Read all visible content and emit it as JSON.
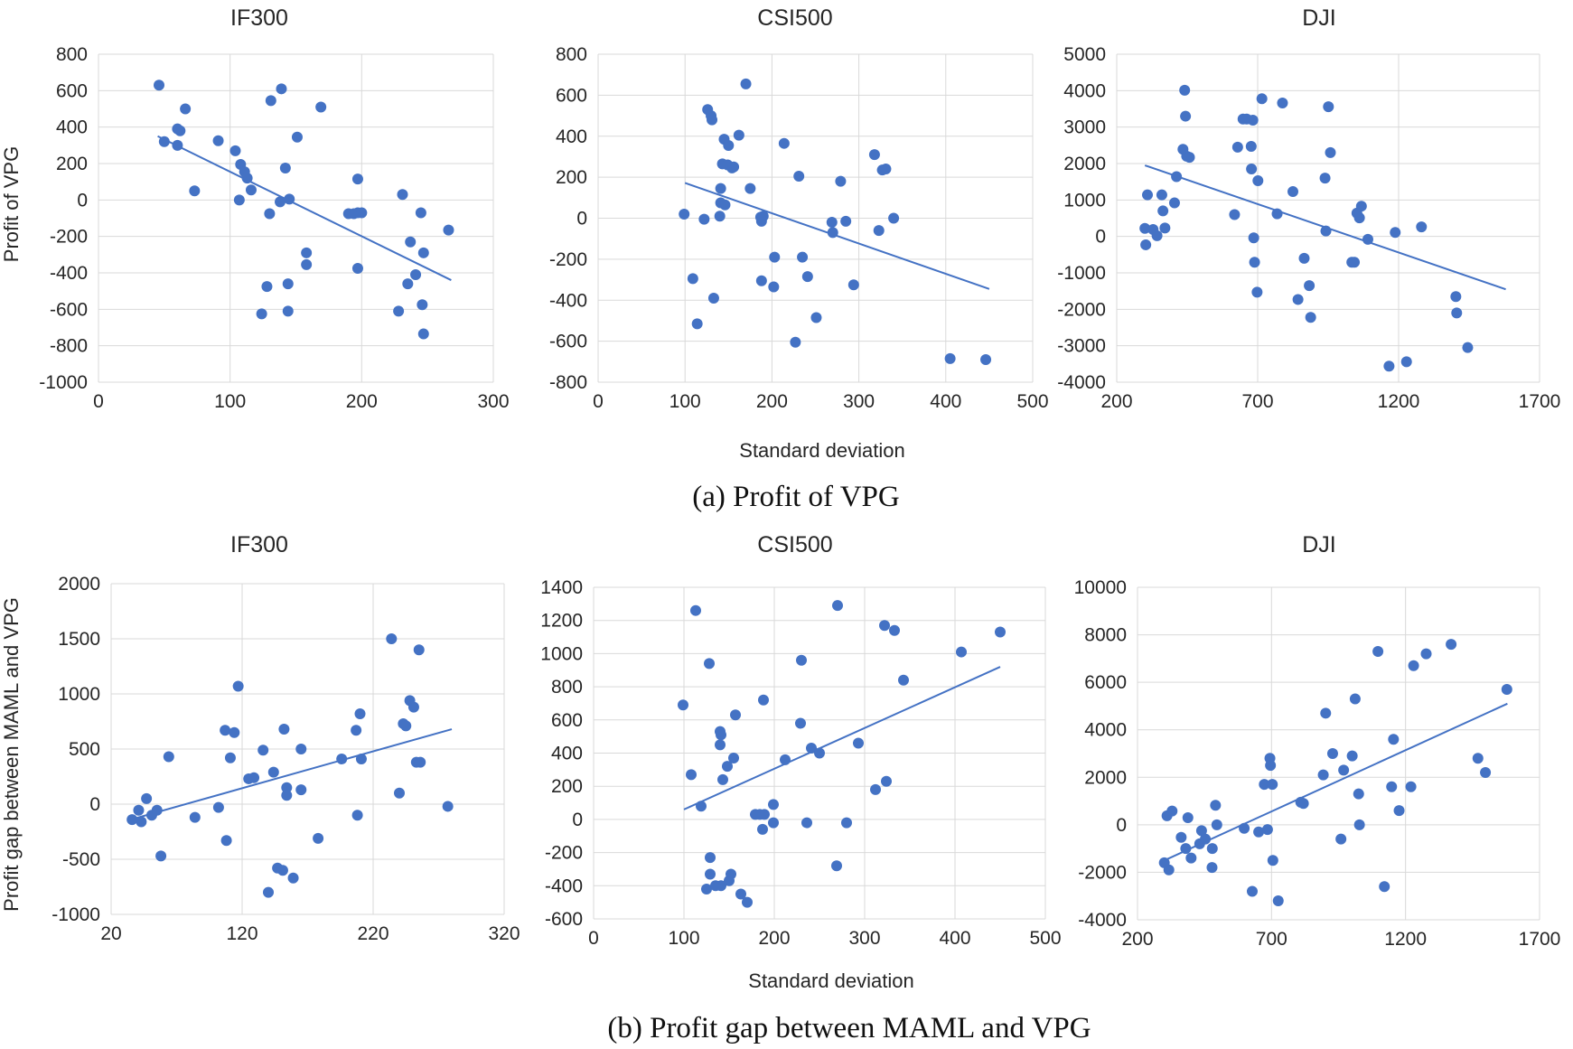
{
  "figure": {
    "caption_a": "(a) Profit of VPG",
    "caption_b": "(b) Profit gap between MAML and VPG",
    "xlabel_a": "Standard deviation",
    "xlabel_b": "Standard deviation",
    "ylabel_a": "Profit of VPG",
    "ylabel_b": "Profit gap between MAML and VPG"
  },
  "style": {
    "accent": "#4472c4",
    "grid": "#d9d9d9"
  },
  "chart_data": [
    {
      "id": "a1",
      "type": "scatter",
      "title": "IF300",
      "xlabel": "",
      "ylabel": "Profit of VPG",
      "xlim": [
        0,
        300
      ],
      "ylim": [
        -1000,
        800
      ],
      "xticks": [
        0,
        100,
        200,
        300
      ],
      "yticks": [
        -1000,
        -800,
        -600,
        -400,
        -200,
        0,
        200,
        400,
        600,
        800
      ],
      "trendline": {
        "type": "linear",
        "x": [
          45,
          268
        ],
        "y": [
          350,
          -440
        ]
      },
      "points": [
        [
          46,
          630
        ],
        [
          50,
          320
        ],
        [
          60,
          390
        ],
        [
          62,
          380
        ],
        [
          60,
          300
        ],
        [
          66,
          500
        ],
        [
          73,
          50
        ],
        [
          91,
          325
        ],
        [
          104,
          270
        ],
        [
          107,
          0
        ],
        [
          108,
          195
        ],
        [
          111,
          155
        ],
        [
          113,
          120
        ],
        [
          116,
          55
        ],
        [
          128,
          -475
        ],
        [
          124,
          -625
        ],
        [
          130,
          -75
        ],
        [
          131,
          545
        ],
        [
          138,
          -10
        ],
        [
          139,
          610
        ],
        [
          142,
          175
        ],
        [
          144,
          -610
        ],
        [
          144,
          -460
        ],
        [
          145,
          5
        ],
        [
          151,
          345
        ],
        [
          158,
          -290
        ],
        [
          158,
          -355
        ],
        [
          169,
          510
        ],
        [
          190,
          -75
        ],
        [
          194,
          -75
        ],
        [
          197,
          -70
        ],
        [
          197,
          115
        ],
        [
          197,
          -375
        ],
        [
          200,
          -70
        ],
        [
          228,
          -610
        ],
        [
          231,
          30
        ],
        [
          235,
          -460
        ],
        [
          237,
          -230
        ],
        [
          241,
          -410
        ],
        [
          245,
          -70
        ],
        [
          246,
          -575
        ],
        [
          247,
          -290
        ],
        [
          247,
          -735
        ],
        [
          266,
          -165
        ]
      ]
    },
    {
      "id": "a2",
      "type": "scatter",
      "title": "CSI500",
      "xlabel": "Standard deviation",
      "ylabel": "",
      "xlim": [
        0,
        500
      ],
      "ylim": [
        -800,
        800
      ],
      "xticks": [
        0,
        100,
        200,
        300,
        400,
        500
      ],
      "yticks": [
        -800,
        -600,
        -400,
        -200,
        0,
        200,
        400,
        600,
        800
      ],
      "trendline": {
        "type": "linear",
        "x": [
          100,
          450
        ],
        "y": [
          172,
          -345
        ]
      },
      "points": [
        [
          99,
          20
        ],
        [
          109,
          -295
        ],
        [
          114,
          -515
        ],
        [
          122,
          -5
        ],
        [
          126,
          530
        ],
        [
          130,
          500
        ],
        [
          131,
          480
        ],
        [
          133,
          -390
        ],
        [
          140,
          10
        ],
        [
          141,
          75
        ],
        [
          141,
          145
        ],
        [
          143,
          265
        ],
        [
          145,
          385
        ],
        [
          146,
          65
        ],
        [
          149,
          260
        ],
        [
          150,
          355
        ],
        [
          154,
          245
        ],
        [
          156,
          250
        ],
        [
          162,
          405
        ],
        [
          170,
          655
        ],
        [
          175,
          145
        ],
        [
          187,
          5
        ],
        [
          188,
          -15
        ],
        [
          188,
          -305
        ],
        [
          190,
          10
        ],
        [
          202,
          -335
        ],
        [
          203,
          -190
        ],
        [
          214,
          365
        ],
        [
          227,
          -605
        ],
        [
          231,
          205
        ],
        [
          235,
          -190
        ],
        [
          241,
          -285
        ],
        [
          251,
          -485
        ],
        [
          269,
          -20
        ],
        [
          270,
          -70
        ],
        [
          279,
          180
        ],
        [
          285,
          -15
        ],
        [
          294,
          -325
        ],
        [
          318,
          310
        ],
        [
          323,
          -60
        ],
        [
          327,
          235
        ],
        [
          331,
          240
        ],
        [
          340,
          0
        ],
        [
          405,
          -685
        ],
        [
          446,
          -690
        ]
      ]
    },
    {
      "id": "a3",
      "type": "scatter",
      "title": "DJI",
      "xlabel": "",
      "ylabel": "",
      "xlim": [
        200,
        1700
      ],
      "ylim": [
        -4000,
        5000
      ],
      "xticks": [
        200,
        700,
        1200,
        1700
      ],
      "yticks": [
        -4000,
        -3000,
        -2000,
        -1000,
        0,
        1000,
        2000,
        3000,
        4000,
        5000
      ],
      "trendline": {
        "type": "linear",
        "x": [
          300,
          1580
        ],
        "y": [
          1950,
          -1450
        ]
      },
      "points": [
        [
          300,
          220
        ],
        [
          303,
          -230
        ],
        [
          309,
          1140
        ],
        [
          329,
          190
        ],
        [
          343,
          20
        ],
        [
          360,
          1140
        ],
        [
          364,
          700
        ],
        [
          371,
          230
        ],
        [
          405,
          920
        ],
        [
          412,
          1640
        ],
        [
          435,
          2390
        ],
        [
          441,
          4010
        ],
        [
          444,
          3300
        ],
        [
          448,
          2200
        ],
        [
          458,
          2170
        ],
        [
          618,
          600
        ],
        [
          629,
          2450
        ],
        [
          648,
          3220
        ],
        [
          661,
          3220
        ],
        [
          677,
          2470
        ],
        [
          678,
          1850
        ],
        [
          683,
          3190
        ],
        [
          686,
          -40
        ],
        [
          689,
          -710
        ],
        [
          698,
          -1530
        ],
        [
          701,
          1530
        ],
        [
          715,
          3780
        ],
        [
          769,
          620
        ],
        [
          788,
          3660
        ],
        [
          825,
          1230
        ],
        [
          843,
          -1730
        ],
        [
          865,
          -600
        ],
        [
          883,
          -1350
        ],
        [
          888,
          -2220
        ],
        [
          939,
          1600
        ],
        [
          942,
          150
        ],
        [
          951,
          3560
        ],
        [
          958,
          2300
        ],
        [
          1034,
          -710
        ],
        [
          1043,
          -710
        ],
        [
          1052,
          640
        ],
        [
          1061,
          510
        ],
        [
          1068,
          830
        ],
        [
          1091,
          -80
        ],
        [
          1166,
          -3560
        ],
        [
          1188,
          110
        ],
        [
          1228,
          -3440
        ],
        [
          1281,
          260
        ],
        [
          1403,
          -1650
        ],
        [
          1406,
          -2100
        ],
        [
          1445,
          -3050
        ]
      ]
    },
    {
      "id": "b1",
      "type": "scatter",
      "title": "IF300",
      "xlabel": "",
      "ylabel": "Profit gap between MAML and VPG",
      "xlim": [
        20,
        320
      ],
      "ylim": [
        -1000,
        2000
      ],
      "xticks": [
        20,
        120,
        220,
        320
      ],
      "yticks": [
        -1000,
        -500,
        0,
        500,
        1000,
        1500,
        2000
      ],
      "trendline": {
        "type": "linear",
        "x": [
          38,
          280
        ],
        "y": [
          -130,
          680
        ]
      },
      "points": [
        [
          36,
          -140
        ],
        [
          41,
          -55
        ],
        [
          43,
          -160
        ],
        [
          47,
          50
        ],
        [
          51,
          -100
        ],
        [
          55,
          -55
        ],
        [
          58,
          -470
        ],
        [
          64,
          430
        ],
        [
          84,
          -120
        ],
        [
          102,
          -30
        ],
        [
          107,
          670
        ],
        [
          108,
          -330
        ],
        [
          111,
          420
        ],
        [
          114,
          650
        ],
        [
          117,
          1070
        ],
        [
          125,
          230
        ],
        [
          129,
          240
        ],
        [
          136,
          490
        ],
        [
          140,
          -800
        ],
        [
          144,
          290
        ],
        [
          147,
          -580
        ],
        [
          151,
          -600
        ],
        [
          152,
          680
        ],
        [
          154,
          150
        ],
        [
          154,
          80
        ],
        [
          159,
          -670
        ],
        [
          165,
          130
        ],
        [
          165,
          500
        ],
        [
          178,
          -310
        ],
        [
          196,
          410
        ],
        [
          207,
          670
        ],
        [
          208,
          -100
        ],
        [
          210,
          820
        ],
        [
          211,
          410
        ],
        [
          234,
          1500
        ],
        [
          240,
          100
        ],
        [
          243,
          730
        ],
        [
          245,
          710
        ],
        [
          248,
          940
        ],
        [
          251,
          880
        ],
        [
          253,
          380
        ],
        [
          255,
          1400
        ],
        [
          256,
          380
        ],
        [
          277,
          -20
        ]
      ]
    },
    {
      "id": "b2",
      "type": "scatter",
      "title": "CSI500",
      "xlabel": "Standard deviation",
      "ylabel": "",
      "xlim": [
        0,
        500
      ],
      "ylim": [
        -600,
        1400
      ],
      "xticks": [
        0,
        100,
        200,
        300,
        400,
        500
      ],
      "yticks": [
        -600,
        -400,
        -200,
        0,
        200,
        400,
        600,
        800,
        1000,
        1200,
        1400
      ],
      "trendline": {
        "type": "linear",
        "x": [
          100,
          450
        ],
        "y": [
          60,
          920
        ]
      },
      "points": [
        [
          99,
          690
        ],
        [
          108,
          270
        ],
        [
          113,
          1260
        ],
        [
          119,
          80
        ],
        [
          125,
          -420
        ],
        [
          128,
          940
        ],
        [
          129,
          -330
        ],
        [
          129,
          -230
        ],
        [
          135,
          -400
        ],
        [
          140,
          450
        ],
        [
          140,
          530
        ],
        [
          141,
          -400
        ],
        [
          141,
          510
        ],
        [
          143,
          240
        ],
        [
          148,
          320
        ],
        [
          150,
          -370
        ],
        [
          152,
          -330
        ],
        [
          155,
          370
        ],
        [
          157,
          630
        ],
        [
          163,
          -450
        ],
        [
          170,
          -500
        ],
        [
          179,
          30
        ],
        [
          184,
          30
        ],
        [
          187,
          -60
        ],
        [
          188,
          720
        ],
        [
          189,
          30
        ],
        [
          199,
          90
        ],
        [
          199,
          -20
        ],
        [
          212,
          360
        ],
        [
          229,
          580
        ],
        [
          230,
          960
        ],
        [
          236,
          -20
        ],
        [
          241,
          430
        ],
        [
          250,
          400
        ],
        [
          269,
          -280
        ],
        [
          270,
          1290
        ],
        [
          280,
          -20
        ],
        [
          293,
          460
        ],
        [
          312,
          180
        ],
        [
          322,
          1170
        ],
        [
          324,
          230
        ],
        [
          333,
          1140
        ],
        [
          343,
          840
        ],
        [
          407,
          1010
        ],
        [
          450,
          1130
        ]
      ]
    },
    {
      "id": "b3",
      "type": "scatter",
      "title": "DJI",
      "xlabel": "",
      "ylabel": "",
      "xlim": [
        200,
        1700
      ],
      "ylim": [
        -4000,
        10000
      ],
      "xticks": [
        200,
        700,
        1200,
        1700
      ],
      "yticks": [
        -4000,
        -2000,
        0,
        2000,
        4000,
        6000,
        8000,
        10000
      ],
      "trendline": {
        "type": "linear",
        "x": [
          300,
          1580
        ],
        "y": [
          -1500,
          5100
        ]
      },
      "points": [
        [
          300,
          -1600
        ],
        [
          310,
          380
        ],
        [
          317,
          -1900
        ],
        [
          329,
          580
        ],
        [
          363,
          -530
        ],
        [
          380,
          -1000
        ],
        [
          388,
          300
        ],
        [
          400,
          -1400
        ],
        [
          432,
          -800
        ],
        [
          439,
          -250
        ],
        [
          453,
          -600
        ],
        [
          478,
          -1800
        ],
        [
          479,
          -1000
        ],
        [
          491,
          820
        ],
        [
          496,
          0
        ],
        [
          598,
          -150
        ],
        [
          628,
          -2800
        ],
        [
          652,
          -300
        ],
        [
          673,
          1700
        ],
        [
          685,
          -200
        ],
        [
          694,
          2800
        ],
        [
          696,
          2500
        ],
        [
          703,
          1700
        ],
        [
          705,
          -1500
        ],
        [
          725,
          -3200
        ],
        [
          809,
          950
        ],
        [
          819,
          900
        ],
        [
          893,
          2100
        ],
        [
          902,
          4700
        ],
        [
          928,
          3000
        ],
        [
          959,
          -600
        ],
        [
          969,
          2300
        ],
        [
          1001,
          2900
        ],
        [
          1012,
          5300
        ],
        [
          1025,
          1300
        ],
        [
          1028,
          0
        ],
        [
          1097,
          7300
        ],
        [
          1121,
          -2600
        ],
        [
          1148,
          1600
        ],
        [
          1155,
          3600
        ],
        [
          1176,
          600
        ],
        [
          1220,
          1600
        ],
        [
          1230,
          6700
        ],
        [
          1277,
          7200
        ],
        [
          1370,
          7600
        ],
        [
          1470,
          2800
        ],
        [
          1498,
          2200
        ],
        [
          1578,
          5700
        ]
      ]
    }
  ]
}
